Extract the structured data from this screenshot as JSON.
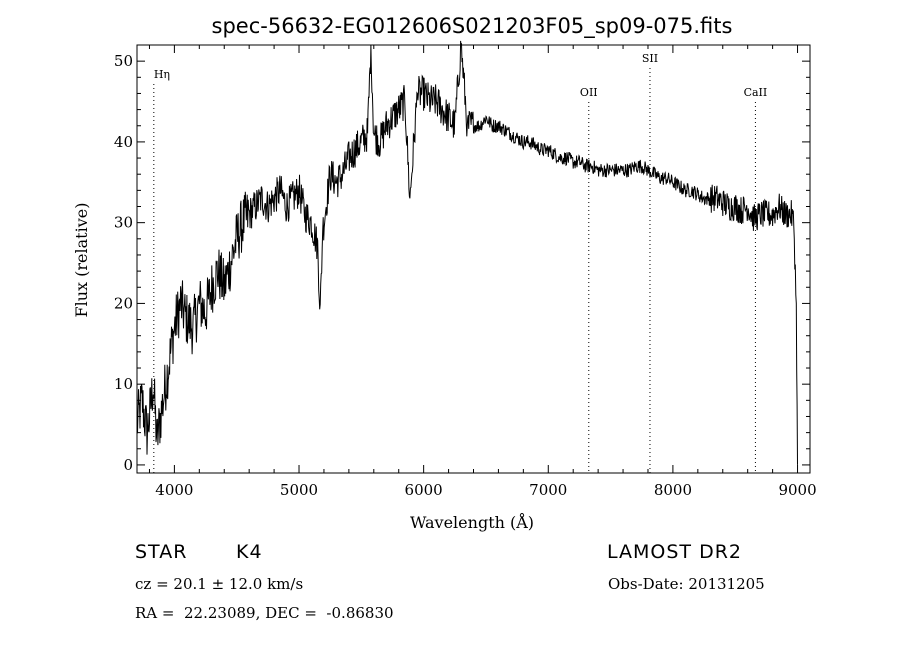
{
  "chart_data": {
    "type": "line",
    "title": "spec-56632-EG012606S021203F05_sp09-075.fits",
    "xlabel": "Wavelength (Å)",
    "ylabel": "Flux (relative)",
    "xlim": [
      3700,
      9100
    ],
    "ylim": [
      -1,
      52
    ],
    "x_ticks": [
      4000,
      5000,
      6000,
      7000,
      8000,
      9000
    ],
    "y_ticks": [
      0,
      10,
      20,
      30,
      40,
      50
    ],
    "grid": false,
    "series": [
      {
        "x": [
          3700,
          3740,
          3780,
          3800,
          3830,
          3860,
          3900,
          3950,
          4000,
          4050,
          4100,
          4150,
          4200,
          4250,
          4300,
          4350,
          4400,
          4450,
          4500,
          4550,
          4600,
          4650,
          4700,
          4750,
          4800,
          4850,
          4900,
          4950,
          5000,
          5050,
          5100,
          5150,
          5170,
          5190,
          5250,
          5300,
          5350,
          5400,
          5450,
          5500,
          5550,
          5577,
          5600,
          5650,
          5700,
          5750,
          5800,
          5850,
          5890,
          5950,
          6000,
          6050,
          6100,
          6150,
          6200,
          6250,
          6300,
          6350,
          6400,
          6450,
          6500,
          6550,
          6600,
          6650,
          6700,
          6750,
          6800,
          6850,
          6900,
          6950,
          7000,
          7050,
          7100,
          7150,
          7200,
          7250,
          7300,
          7350,
          7400,
          7450,
          7500,
          7550,
          7600,
          7650,
          7700,
          7750,
          7800,
          7850,
          7900,
          7950,
          8000,
          8050,
          8100,
          8150,
          8200,
          8250,
          8300,
          8350,
          8400,
          8450,
          8500,
          8550,
          8600,
          8650,
          8700,
          8750,
          8800,
          8850,
          8900,
          8950,
          8970,
          8990,
          9000
        ],
        "values": [
          5,
          8,
          4,
          6,
          10,
          3,
          7,
          12,
          17,
          20,
          18,
          17,
          20,
          19,
          22,
          24,
          22,
          25,
          28,
          30,
          31,
          32,
          33,
          32,
          33,
          34,
          32,
          33,
          34,
          31,
          30,
          27,
          19,
          29,
          36,
          35,
          36,
          38,
          39,
          40,
          41,
          52,
          41,
          40,
          42,
          43,
          44,
          45,
          33,
          46,
          46,
          45,
          45,
          44,
          43,
          42,
          52,
          42,
          42,
          42,
          43,
          42,
          42,
          41.5,
          41,
          40.5,
          40,
          40,
          39.5,
          39,
          39,
          38.5,
          38,
          38,
          37.5,
          37.5,
          37,
          37,
          36.5,
          36.5,
          36.5,
          36.5,
          36.5,
          36.5,
          37,
          37,
          36.5,
          36,
          35.5,
          35.5,
          35,
          34.5,
          34,
          34,
          33.5,
          33,
          33,
          33,
          32.5,
          32,
          32,
          31.5,
          32,
          30.5,
          31,
          31,
          31,
          32,
          31,
          31,
          30,
          20,
          0
        ]
      }
    ],
    "annotations": [
      {
        "label": "Hη",
        "x": 3835
      },
      {
        "label": "OII",
        "x": 7325
      },
      {
        "label": "SII",
        "x": 7816
      },
      {
        "label": "CaII",
        "x": 8662
      }
    ]
  },
  "info": {
    "object_class": "STAR",
    "subclass": "K4",
    "survey": "LAMOST DR2",
    "cz": "cz = 20.1 ± 12.0 km/s",
    "obs_date": "Obs-Date: 20131205",
    "radec": "RA =  22.23089, DEC =  -0.86830"
  }
}
